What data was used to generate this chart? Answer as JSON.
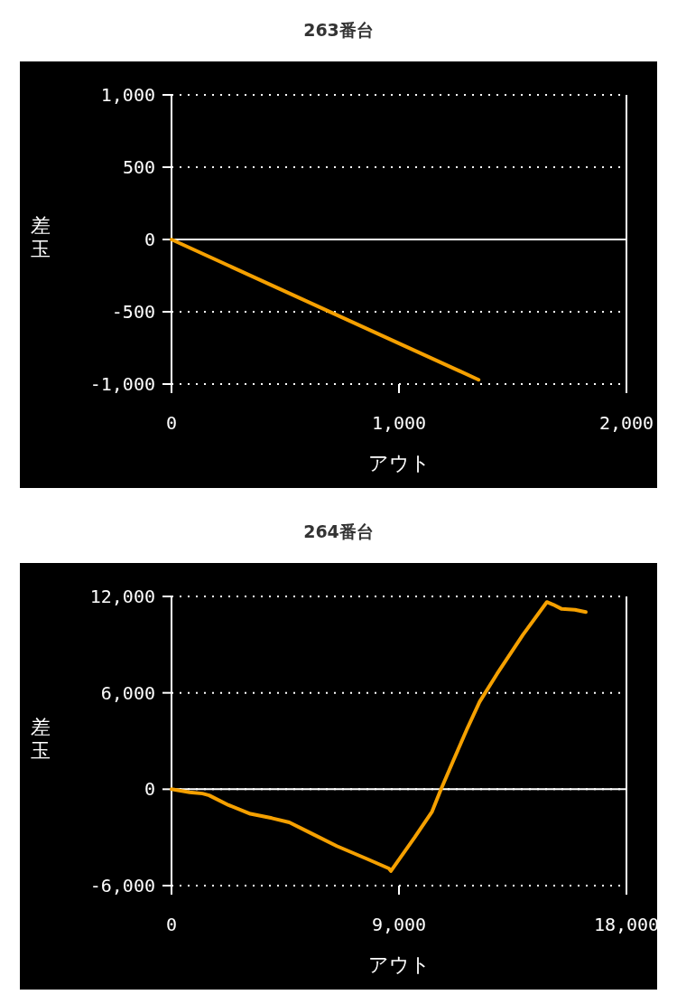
{
  "chart_data": [
    {
      "type": "line",
      "title": "263番台",
      "xlabel": "アウト",
      "ylabel": "差玉",
      "x": [
        0,
        1350
      ],
      "series": [
        {
          "color": "#f5a000",
          "values": [
            0,
            -970
          ]
        }
      ],
      "xlim": [
        0,
        2000
      ],
      "ylim": [
        -1000,
        1000
      ],
      "xticks": [
        0,
        {
          "value": 1000,
          "label": "1,000"
        },
        {
          "value": 2000,
          "label": "2,000"
        }
      ],
      "yticks": [
        {
          "value": -1000,
          "label": "-1,000"
        },
        -500,
        0,
        500,
        {
          "value": 1000,
          "label": "1,000"
        }
      ],
      "grid": "y",
      "ref_lines": [
        {
          "axis": "y",
          "value": 0,
          "color": "#ffffff",
          "line_style": "solid"
        }
      ]
    },
    {
      "type": "line",
      "title": "264番台",
      "xlabel": "アウト",
      "ylabel": "差玉",
      "x": [
        0,
        720,
        1230,
        1490,
        2260,
        3120,
        3970,
        4660,
        5510,
        6540,
        7740,
        8600,
        8680,
        9620,
        10310,
        10650,
        11160,
        11680,
        12190,
        12880,
        13900,
        14850,
        15100,
        15440,
        15960,
        16390
      ],
      "series": [
        {
          "color": "#f5a000",
          "values": [
            0,
            -190,
            -270,
            -380,
            -990,
            -1530,
            -1800,
            -2060,
            -2730,
            -3540,
            -4340,
            -4930,
            -5090,
            -3000,
            -1390,
            -50,
            1820,
            3700,
            5440,
            7180,
            9600,
            11650,
            11490,
            11220,
            11170,
            11030
          ]
        }
      ],
      "xlim": [
        0,
        18000
      ],
      "ylim": [
        -6000,
        12000
      ],
      "xticks": [
        0,
        {
          "value": 9000,
          "label": "9,000"
        },
        {
          "value": 18000,
          "label": "18,000"
        }
      ],
      "yticks": [
        {
          "value": -6000,
          "label": "-6,000"
        },
        0,
        {
          "value": 6000,
          "label": "6,000"
        },
        {
          "value": 12000,
          "label": "12,000"
        }
      ],
      "grid": "y",
      "ref_lines": [
        {
          "axis": "y",
          "value": 0,
          "color": "#ffffff",
          "line_style": "solid"
        }
      ]
    }
  ]
}
